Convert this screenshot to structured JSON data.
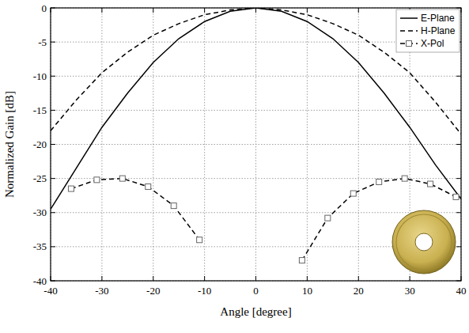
{
  "chart_data": {
    "type": "line",
    "x_label": "Angle [degree]",
    "y_label": "Normalized Gain [dB]",
    "xlim": [
      -40,
      40
    ],
    "xticks": [
      -40,
      -30,
      -20,
      -10,
      0,
      10,
      20,
      30,
      40
    ],
    "ylim": [
      -40,
      0
    ],
    "yticks": [
      -40,
      -35,
      -30,
      -25,
      -20,
      -15,
      -10,
      -5,
      0
    ],
    "grid": true,
    "legend": "upper right",
    "series": [
      {
        "name": "E-Plane",
        "color": "#000000",
        "line_style": "solid",
        "marker": "none",
        "x": [
          -40,
          -35,
          -30,
          -25,
          -20,
          -15,
          -10,
          -5,
          0,
          5,
          10,
          15,
          20,
          25,
          30,
          35,
          40
        ],
        "values": [
          -29.5,
          -23.5,
          -17.5,
          -12.5,
          -8,
          -4.5,
          -2,
          -0.5,
          0,
          -0.5,
          -2,
          -4.5,
          -8,
          -12.5,
          -17.5,
          -23,
          -28
        ]
      },
      {
        "name": "H-Plane",
        "color": "#000000",
        "line_style": "dashed",
        "marker": "none",
        "x": [
          -40,
          -35,
          -30,
          -25,
          -20,
          -15,
          -10,
          -5,
          0,
          5,
          10,
          15,
          20,
          25,
          30,
          35,
          40
        ],
        "values": [
          -18,
          -13.5,
          -9.5,
          -6.5,
          -4,
          -2.3,
          -1,
          -0.3,
          0,
          -0.3,
          -1,
          -2.3,
          -4,
          -6.5,
          -9.5,
          -13.8,
          -18.5
        ]
      },
      {
        "name": "X-Pol",
        "color": "#000000",
        "line_style": "dashed",
        "marker": "square",
        "x": [
          -36,
          -31,
          -26,
          -21,
          -16,
          -11,
          0,
          9,
          14,
          19,
          24,
          29,
          34,
          39
        ],
        "values": [
          -26.5,
          -25.2,
          -25,
          -26.2,
          -29,
          -34,
          null,
          -37,
          -30.8,
          -27.2,
          -25.5,
          -25,
          -25.8,
          -27.7
        ]
      }
    ]
  }
}
